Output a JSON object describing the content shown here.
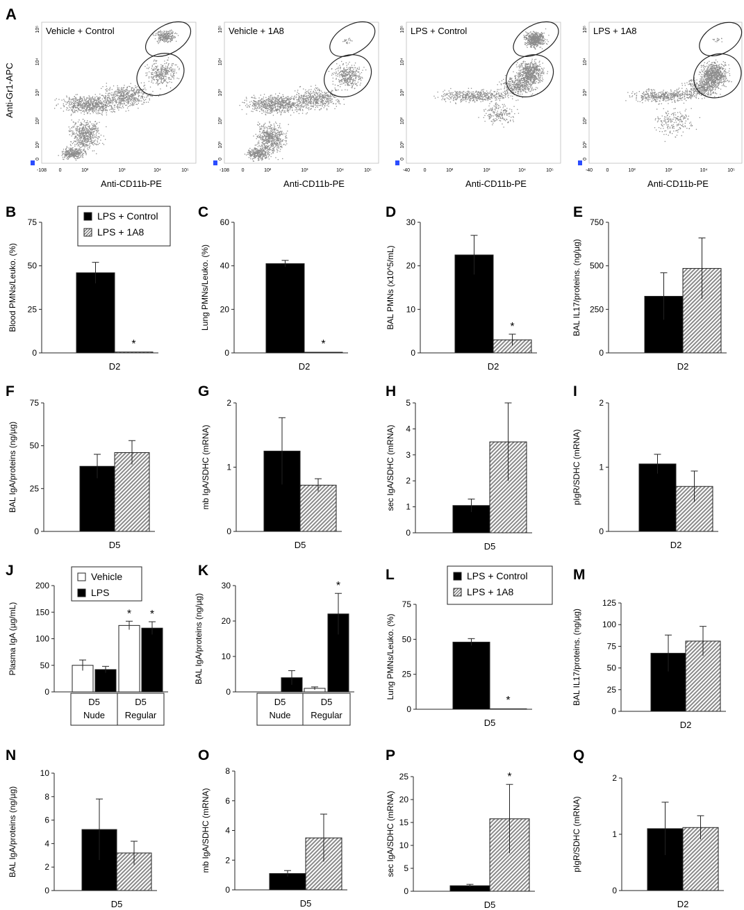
{
  "flow_panels": {
    "label": "A",
    "xlabel": "Anti-CD11b-PE",
    "ylabel": "Anti-Gr1-APC",
    "panels": [
      {
        "title": "Vehicle + Control",
        "x_ticks": [
          "-108",
          "0",
          "10²",
          "10³",
          "10⁴",
          "10⁵"
        ],
        "y_ticks": [
          "10⁵",
          "10⁴",
          "10³",
          "10²",
          "10¹",
          "0"
        ]
      },
      {
        "title": "Vehicle + 1A8",
        "x_ticks": [
          "-108",
          "0",
          "10²",
          "10³",
          "10⁴",
          "10⁵"
        ],
        "y_ticks": [
          "10⁵",
          "10⁴",
          "10³",
          "10²",
          "10¹",
          "0"
        ]
      },
      {
        "title": "LPS + Control",
        "x_ticks": [
          "-40",
          "0",
          "10²",
          "10³",
          "10⁴",
          "10⁵"
        ],
        "y_ticks": [
          "10⁵",
          "10⁴",
          "10³",
          "10²",
          "10¹",
          "0"
        ]
      },
      {
        "title": "LPS + 1A8",
        "x_ticks": [
          "-40",
          "0",
          "10²",
          "10³",
          "10⁴",
          "10⁵"
        ],
        "y_ticks": [
          "10⁵",
          "10⁴",
          "10³",
          "10²",
          "10¹",
          "0"
        ]
      }
    ]
  },
  "legends": {
    "lps": [
      "LPS + Control",
      "LPS + 1A8"
    ],
    "vehicle": [
      "Vehicle",
      "LPS"
    ]
  },
  "colors": {
    "solid": "#000000",
    "hatched": "#b5b5b5",
    "open": "#ffffff",
    "dots": "#8c8c8c"
  },
  "chart_data": [
    {
      "label": "B",
      "type": "bar",
      "ylabel": "Blood PMNs/Leuko. (%)",
      "xlabel": "D2",
      "yticks": [
        "0",
        "25",
        "50",
        "75"
      ],
      "ylim": [
        0,
        75
      ],
      "series": [
        {
          "name": "LPS + Control",
          "values": [
            46
          ],
          "errors": [
            6
          ]
        },
        {
          "name": "LPS + 1A8",
          "values": [
            0.5
          ],
          "errors": [
            0
          ],
          "star": "*"
        }
      ]
    },
    {
      "label": "C",
      "type": "bar",
      "ylabel": "Lung PMNs/Leuko. (%)",
      "xlabel": "D2",
      "yticks": [
        "0",
        "20",
        "40",
        "60"
      ],
      "ylim": [
        0,
        60
      ],
      "series": [
        {
          "values": [
            41
          ],
          "errors": [
            1.5
          ]
        },
        {
          "values": [
            0.3
          ],
          "errors": [
            0
          ],
          "star": "*"
        }
      ]
    },
    {
      "label": "D",
      "type": "bar",
      "ylabel": "BAL PMNs (x10^5/mL)",
      "xlabel": "D2",
      "yticks": [
        "0",
        "10",
        "20",
        "30"
      ],
      "ylim": [
        0,
        30
      ],
      "series": [
        {
          "values": [
            22.5
          ],
          "errors": [
            4.5
          ]
        },
        {
          "values": [
            3
          ],
          "errors": [
            1.3
          ],
          "star": "*"
        }
      ]
    },
    {
      "label": "E",
      "type": "bar",
      "ylabel": "BAL IL17/proteins. (ng/µg)",
      "xlabel": "D2",
      "yticks": [
        "0",
        "250",
        "500",
        "750"
      ],
      "ylim": [
        0,
        750
      ],
      "series": [
        {
          "values": [
            325
          ],
          "errors": [
            135
          ]
        },
        {
          "values": [
            485
          ],
          "errors": [
            175
          ]
        }
      ]
    },
    {
      "label": "F",
      "type": "bar",
      "ylabel": "BAL IgA/proteins (ng/µg)",
      "xlabel": "D5",
      "yticks": [
        "0",
        "25",
        "50",
        "75"
      ],
      "ylim": [
        0,
        75
      ],
      "series": [
        {
          "values": [
            38
          ],
          "errors": [
            7
          ]
        },
        {
          "values": [
            46
          ],
          "errors": [
            7
          ]
        }
      ]
    },
    {
      "label": "G",
      "type": "bar",
      "ylabel": "mb IgA/SDHC (mRNA)",
      "xlabel": "D5",
      "yticks": [
        "0",
        "1",
        "2"
      ],
      "ylim": [
        0,
        2
      ],
      "series": [
        {
          "values": [
            1.25
          ],
          "errors": [
            0.52
          ]
        },
        {
          "values": [
            0.72
          ],
          "errors": [
            0.1
          ]
        }
      ]
    },
    {
      "label": "H",
      "type": "bar",
      "ylabel": "sec IgA/SDHC (mRNA)",
      "xlabel": "D5",
      "yticks": [
        "0",
        "1",
        "2",
        "3",
        "4",
        "5"
      ],
      "ylim": [
        0,
        5
      ],
      "series": [
        {
          "values": [
            1.05
          ],
          "errors": [
            0.25
          ]
        },
        {
          "values": [
            3.5
          ],
          "errors": [
            1.5
          ]
        }
      ]
    },
    {
      "label": "I",
      "type": "bar",
      "ylabel": "pIgR/SDHC (mRNA)",
      "xlabel": "D2",
      "yticks": [
        "0",
        "1",
        "2"
      ],
      "ylim": [
        0,
        2
      ],
      "series": [
        {
          "values": [
            1.05
          ],
          "errors": [
            0.15
          ]
        },
        {
          "values": [
            0.7
          ],
          "errors": [
            0.24
          ]
        }
      ]
    },
    {
      "label": "J",
      "type": "bar",
      "ylabel": "Plasma IgA (µg/mL)",
      "yticks": [
        "0",
        "50",
        "100",
        "150",
        "200"
      ],
      "ylim": [
        0,
        200
      ],
      "categories": [
        [
          "D5",
          "Nude"
        ],
        [
          "D5",
          "Regular"
        ]
      ],
      "series": [
        {
          "name": "Vehicle",
          "values": [
            50,
            125
          ],
          "errors": [
            10,
            8
          ],
          "stars": [
            "",
            "*"
          ]
        },
        {
          "name": "LPS",
          "values": [
            42,
            120
          ],
          "errors": [
            6,
            12
          ],
          "stars": [
            "",
            "*"
          ]
        }
      ]
    },
    {
      "label": "K",
      "type": "bar",
      "ylabel": "BAL IgA/proteins (ng/µg)",
      "yticks": [
        "0",
        "10",
        "20",
        "30"
      ],
      "ylim": [
        0,
        30
      ],
      "categories": [
        [
          "D5",
          "Nude"
        ],
        [
          "D5",
          "Regular"
        ]
      ],
      "series": [
        {
          "values": [
            0,
            1
          ],
          "errors": [
            0,
            0.4
          ],
          "stars": [
            "",
            ""
          ]
        },
        {
          "values": [
            4,
            22
          ],
          "errors": [
            2,
            5.8
          ],
          "stars": [
            "",
            "*"
          ]
        }
      ]
    },
    {
      "label": "L",
      "type": "bar",
      "ylabel": "Lung PMNs/Leuko. (%)",
      "xlabel": "D5",
      "yticks": [
        "0",
        "25",
        "50",
        "75"
      ],
      "ylim": [
        0,
        75
      ],
      "series": [
        {
          "name": "LPS + Control",
          "values": [
            48
          ],
          "errors": [
            2.5
          ]
        },
        {
          "name": "LPS + 1A8",
          "values": [
            0.3
          ],
          "errors": [
            0
          ],
          "star": "*"
        }
      ]
    },
    {
      "label": "M",
      "type": "bar",
      "ylabel": "BAL IL17/proteins. (ng/µg)",
      "xlabel": "D2",
      "yticks": [
        "0",
        "25",
        "50",
        "75",
        "100",
        "125"
      ],
      "ylim": [
        0,
        125
      ],
      "series": [
        {
          "values": [
            67
          ],
          "errors": [
            21
          ]
        },
        {
          "values": [
            81
          ],
          "errors": [
            17
          ]
        }
      ]
    },
    {
      "label": "N",
      "type": "bar",
      "ylabel": "BAL IgA/proteins (ng/µg)",
      "xlabel": "D5",
      "yticks": [
        "0",
        "2",
        "4",
        "6",
        "8",
        "10"
      ],
      "ylim": [
        0,
        10
      ],
      "series": [
        {
          "values": [
            5.2
          ],
          "errors": [
            2.6
          ]
        },
        {
          "values": [
            3.2
          ],
          "errors": [
            1
          ]
        }
      ]
    },
    {
      "label": "O",
      "type": "bar",
      "ylabel": "mb IgA/SDHC (mRNA)",
      "xlabel": "D5",
      "yticks": [
        "0",
        "2",
        "4",
        "6",
        "8"
      ],
      "ylim": [
        0,
        8
      ],
      "series": [
        {
          "values": [
            1.1
          ],
          "errors": [
            0.2
          ]
        },
        {
          "values": [
            3.5
          ],
          "errors": [
            1.6
          ]
        }
      ]
    },
    {
      "label": "P",
      "type": "bar",
      "ylabel": "sec IgA/SDHC (mRNA)",
      "xlabel": "D5",
      "yticks": [
        "0",
        "5",
        "10",
        "15",
        "20",
        "25"
      ],
      "ylim": [
        0,
        25
      ],
      "series": [
        {
          "values": [
            1.2
          ],
          "errors": [
            0.3
          ]
        },
        {
          "values": [
            15.8
          ],
          "errors": [
            7.5
          ],
          "star": "*"
        }
      ]
    },
    {
      "label": "Q",
      "type": "bar",
      "ylabel": "pIgR/SDHC (mRNA)",
      "xlabel": "D2",
      "yticks": [
        "0",
        "1",
        "2"
      ],
      "ylim": [
        0,
        2
      ],
      "series": [
        {
          "values": [
            1.1
          ],
          "errors": [
            0.47
          ]
        },
        {
          "values": [
            1.12
          ],
          "errors": [
            0.21
          ]
        }
      ]
    }
  ]
}
